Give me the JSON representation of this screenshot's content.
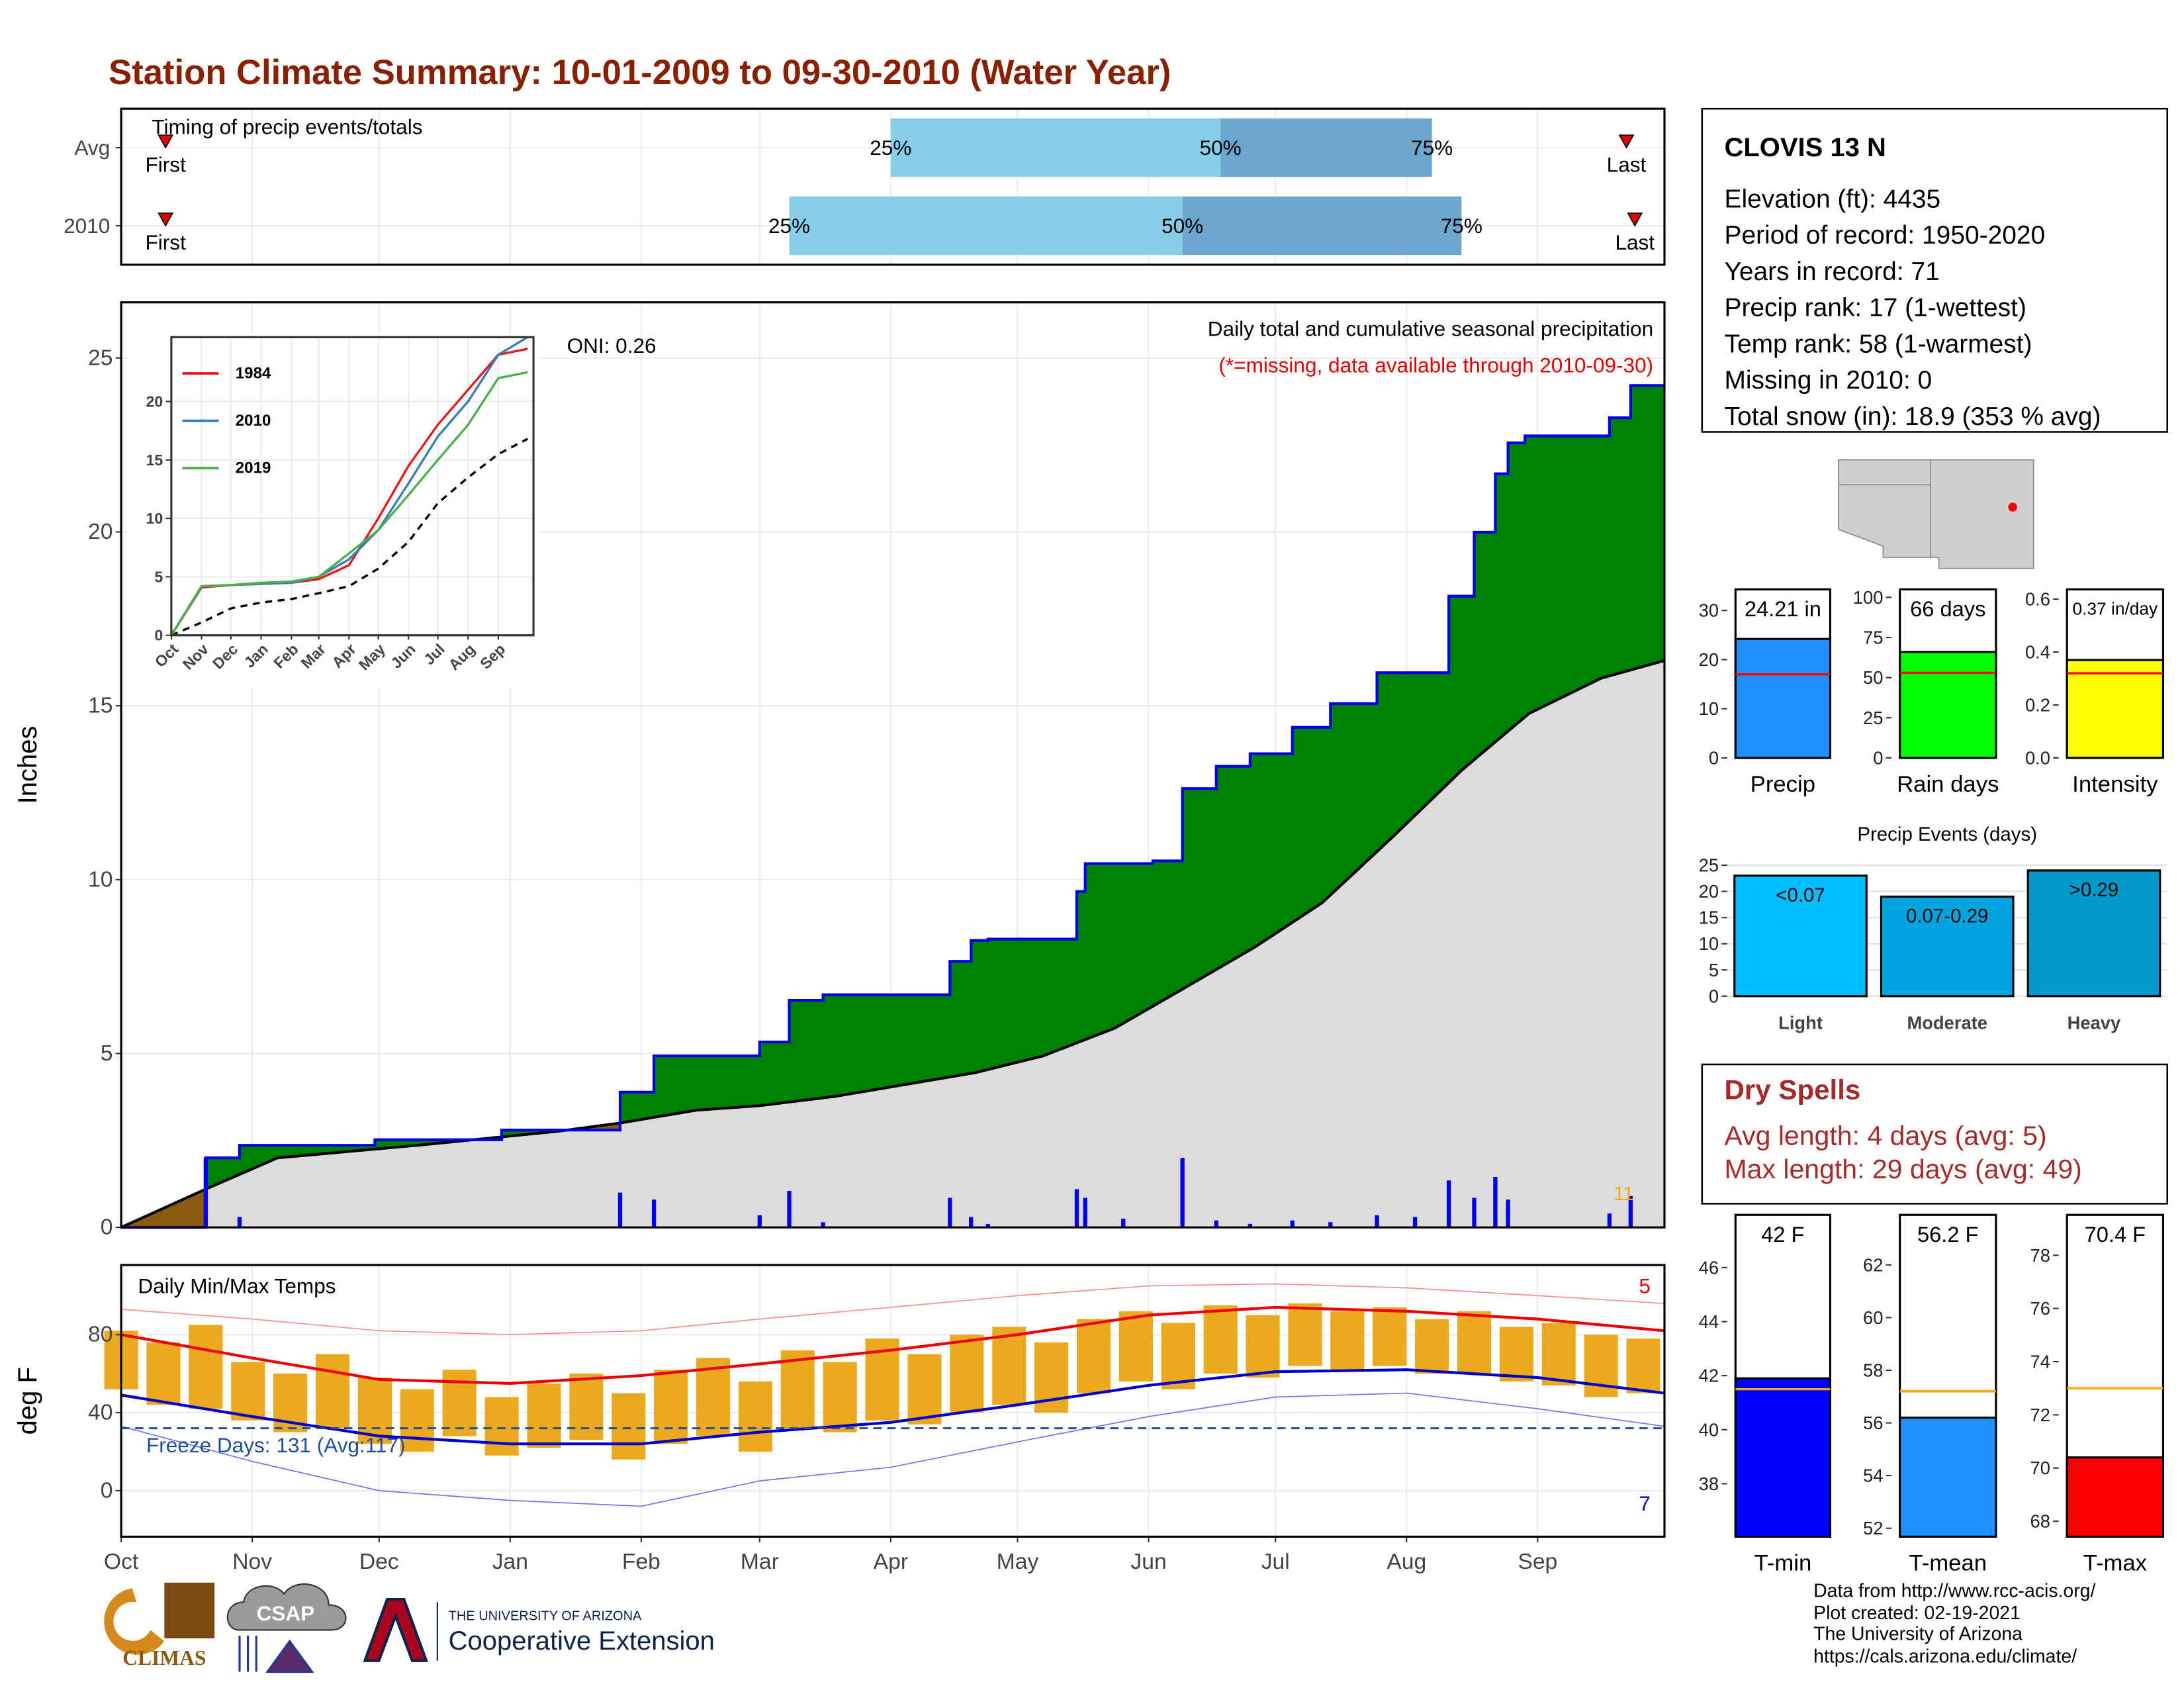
{
  "title": "Station Climate Summary: 10-01-2009 to 09-30-2010 (Water Year)",
  "station": {
    "name": "CLOVIS 13 N",
    "lines": [
      "Elevation (ft): 4435",
      "Period of record: 1950-2020",
      "Years in record: 71",
      "Precip rank: 17 (1-wettest)",
      "Temp rank: 58 (1-warmest)",
      "Missing in 2010: 0",
      "Total snow (in): 18.9 (353 % avg)"
    ]
  },
  "dry_spells": {
    "title": "Dry Spells",
    "lines": [
      "Avg length: 4 days (avg: 5)",
      "Max length: 29 days (avg: 49)"
    ]
  },
  "footer": {
    "credits": [
      "Data from http://www.rcc-acis.org/",
      "Plot created: 02-19-2021",
      "The University of Arizona",
      "https://cals.arizona.edu/climate/"
    ],
    "climas": "CLIMAS",
    "csap": "CSAP",
    "university": "THE UNIVERSITY OF ARIZONA",
    "extension": "Cooperative Extension"
  },
  "chart_data": [
    {
      "type": "timeline",
      "title": "Timing of precip events/totals",
      "categories": [
        "Avg",
        "2010"
      ],
      "xlim": [
        0,
        365
      ],
      "xticks": [
        0,
        31,
        61,
        92,
        123,
        151,
        182,
        212,
        243,
        273,
        304,
        335
      ],
      "first": [
        10.5,
        10.5
      ],
      "q25": [
        182,
        158
      ],
      "q50": [
        260,
        251
      ],
      "q75": [
        310,
        317
      ],
      "last": [
        356,
        358
      ],
      "first_label": "First",
      "last_label": "Last",
      "quantile_labels": [
        "25%",
        "50%",
        "75%"
      ],
      "colors": [
        "#87CEEB",
        "#6CA6CD"
      ],
      "marker_color": "#E00000"
    },
    {
      "type": "cumulative",
      "y_label": "Inches",
      "subtitle": "Daily total and cumulative seasonal precipitation",
      "note": "(*=missing, data available through 2010-09-30)",
      "oni": "ONI: 0.26",
      "count_label": 11,
      "xlim": [
        0,
        365
      ],
      "xticks": [
        0,
        31,
        61,
        92,
        123,
        151,
        182,
        212,
        243,
        273,
        304,
        335
      ],
      "ylim": [
        0,
        26.6
      ],
      "yticks": [
        0,
        5,
        10,
        15,
        20,
        25
      ],
      "cumulative": {
        "x": [
          0,
          20,
          28,
          60,
          90,
          118,
          126,
          151,
          158,
          166,
          196,
          201,
          205,
          226,
          228,
          244,
          251,
          259,
          267,
          277,
          286,
          297,
          314,
          320,
          325,
          328,
          332,
          352,
          357
        ],
        "values": [
          0,
          2.0,
          2.36,
          2.52,
          2.8,
          3.89,
          4.93,
          5.33,
          6.53,
          6.69,
          7.65,
          8.25,
          8.29,
          9.66,
          10.46,
          10.54,
          12.62,
          13.26,
          13.62,
          14.38,
          15.06,
          15.95,
          18.15,
          19.99,
          21.67,
          22.56,
          22.76,
          23.28,
          24.21
        ],
        "color": "#0000EE",
        "fill": "#008000"
      },
      "average": {
        "x": [
          0,
          20,
          37,
          70,
          103,
          118,
          136,
          151,
          169,
          185,
          202,
          218,
          235,
          251,
          268,
          284,
          301,
          317,
          333,
          350,
          365
        ],
        "values": [
          0,
          1.1,
          2.0,
          2.36,
          2.76,
          3.0,
          3.37,
          3.5,
          3.77,
          4.1,
          4.45,
          4.93,
          5.73,
          6.85,
          8.05,
          9.33,
          11.26,
          13.14,
          14.78,
          15.79,
          16.3
        ],
        "color": "#000000",
        "fill": "#DCDCDC",
        "deficit_fill": "#8B5A10"
      },
      "daily": {
        "x": [
          20,
          28,
          118,
          126,
          151,
          158,
          166,
          196,
          201,
          205,
          226,
          228,
          237,
          251,
          259,
          267,
          277,
          286,
          297,
          306,
          314,
          320,
          325,
          328,
          352,
          357
        ],
        "values": [
          2.0,
          0.3,
          1.0,
          0.8,
          0.35,
          1.05,
          0.15,
          0.85,
          0.3,
          0.1,
          1.1,
          0.85,
          0.25,
          2.0,
          0.2,
          0.1,
          0.2,
          0.15,
          0.35,
          0.3,
          1.35,
          0.85,
          1.45,
          0.8,
          0.4,
          0.9
        ],
        "color": "#0000EE"
      }
    },
    {
      "type": "line",
      "x": [
        0,
        31,
        61,
        92,
        123,
        151,
        182,
        212,
        243,
        273,
        304,
        335,
        365
      ],
      "xlim": [
        0,
        371
      ],
      "xticks": [
        {
          "value": 0,
          "label": "Oct"
        },
        {
          "value": 31,
          "label": "Nov"
        },
        {
          "value": 61,
          "label": "Dec"
        },
        {
          "value": 92,
          "label": "Jan"
        },
        {
          "value": 123,
          "label": "Feb"
        },
        {
          "value": 151,
          "label": "Mar"
        },
        {
          "value": 182,
          "label": "Apr"
        },
        {
          "value": 212,
          "label": "May"
        },
        {
          "value": 243,
          "label": "Jun"
        },
        {
          "value": 273,
          "label": "Jul"
        },
        {
          "value": 304,
          "label": "Aug"
        },
        {
          "value": 335,
          "label": "Sep"
        }
      ],
      "ylim": [
        0,
        25.5
      ],
      "yticks": [
        0,
        5,
        10,
        15,
        20
      ],
      "series": [
        {
          "name": "1984",
          "color": "#E41A1C",
          "values": [
            0,
            4.1,
            4.3,
            4.4,
            4.5,
            4.8,
            6,
            10,
            14.5,
            18,
            21,
            24,
            24.5
          ]
        },
        {
          "name": "2010",
          "color": "#377EB8",
          "values": [
            0,
            4.2,
            4.3,
            4.4,
            4.5,
            5.0,
            6.5,
            9,
            13,
            17,
            20,
            24,
            25.5
          ]
        },
        {
          "name": "2019",
          "color": "#4DAF4A",
          "values": [
            0,
            4.2,
            4.3,
            4.5,
            4.6,
            5,
            7,
            9,
            12,
            15,
            18,
            22,
            22.5
          ]
        }
      ],
      "average": {
        "color": "#000000",
        "values": [
          0,
          1.1,
          2.3,
          2.8,
          3.1,
          3.6,
          4.2,
          5.7,
          8.0,
          11.3,
          13.5,
          15.5,
          16.8
        ]
      }
    },
    {
      "type": "temperature",
      "title": "Daily Min/Max Temps",
      "y_label": "deg F",
      "xlim": [
        0,
        365
      ],
      "xticks": [
        {
          "value": 0,
          "label": "Oct"
        },
        {
          "value": 31,
          "label": "Nov"
        },
        {
          "value": 61,
          "label": "Dec"
        },
        {
          "value": 92,
          "label": "Jan"
        },
        {
          "value": 123,
          "label": "Feb"
        },
        {
          "value": 151,
          "label": "Mar"
        },
        {
          "value": 182,
          "label": "Apr"
        },
        {
          "value": 212,
          "label": "May"
        },
        {
          "value": 243,
          "label": "Jun"
        },
        {
          "value": 273,
          "label": "Jul"
        },
        {
          "value": 304,
          "label": "Aug"
        },
        {
          "value": 335,
          "label": "Sep"
        }
      ],
      "ylim": [
        -23.6,
        115.7
      ],
      "yticks": [
        0,
        40,
        80
      ],
      "freeze_line": 32,
      "freeze_label": "Freeze Days: 131 (Avg:117)",
      "record_high_count": 5,
      "record_low_count": 7,
      "daily": {
        "x": [
          0,
          10,
          20,
          30,
          40,
          50,
          60,
          70,
          80,
          90,
          100,
          110,
          120,
          130,
          140,
          150,
          160,
          170,
          180,
          190,
          200,
          210,
          220,
          230,
          240,
          250,
          260,
          270,
          280,
          290,
          300,
          310,
          320,
          330,
          340,
          350,
          360
        ],
        "max": [
          82,
          76,
          85,
          66,
          60,
          70,
          58,
          52,
          62,
          48,
          55,
          60,
          50,
          62,
          68,
          56,
          72,
          66,
          78,
          70,
          80,
          84,
          76,
          88,
          92,
          86,
          95,
          90,
          96,
          92,
          94,
          88,
          92,
          84,
          86,
          80,
          78
        ],
        "min": [
          52,
          44,
          42,
          36,
          30,
          32,
          24,
          20,
          28,
          18,
          22,
          26,
          16,
          24,
          28,
          20,
          32,
          30,
          36,
          34,
          40,
          44,
          40,
          50,
          56,
          52,
          60,
          58,
          64,
          62,
          64,
          60,
          60,
          56,
          54,
          48,
          50
        ],
        "color": "#EBA91E"
      },
      "normal": {
        "x": [
          0,
          31,
          61,
          92,
          123,
          151,
          182,
          212,
          243,
          273,
          304,
          335,
          365
        ],
        "max": [
          80,
          68,
          57,
          55,
          59,
          65,
          72,
          80,
          90,
          94,
          92,
          88,
          82
        ],
        "min": [
          49,
          38,
          28,
          24,
          24,
          30,
          35,
          44,
          54,
          61,
          62,
          58,
          50
        ],
        "record_max": [
          93,
          88,
          82,
          80,
          82,
          88,
          94,
          100,
          105,
          106,
          104,
          100,
          96
        ],
        "record_min": [
          33,
          15,
          0,
          -5,
          -8,
          5,
          12,
          25,
          38,
          48,
          50,
          42,
          33
        ],
        "max_color": "#EE0000",
        "min_color": "#0000CD",
        "record_max_color": "#FF8C8C",
        "record_min_color": "#7070FF",
        "freeze_color": "#1F4E9A"
      }
    },
    {
      "type": "bar",
      "categories": [
        "Precip"
      ],
      "values": [
        24.21
      ],
      "value_labels": [
        "24.21 in"
      ],
      "average": [
        17
      ],
      "ylim": [
        0,
        34.3
      ],
      "yticks": [
        0,
        10,
        20,
        30
      ],
      "color": "#1E90FF",
      "avg_color": "#FF0000"
    },
    {
      "type": "bar",
      "categories": [
        "Rain days"
      ],
      "values": [
        66
      ],
      "value_labels": [
        "66 days"
      ],
      "average": [
        53
      ],
      "ylim": [
        0,
        105
      ],
      "yticks": [
        0,
        25,
        50,
        75,
        100
      ],
      "color": "#00FF00",
      "avg_color": "#FF0000"
    },
    {
      "type": "bar",
      "categories": [
        "Intensity"
      ],
      "values": [
        0.37
      ],
      "value_labels": [
        "0.37 in/day"
      ],
      "average": [
        0.32
      ],
      "ylim": [
        0,
        0.637
      ],
      "yticks": [
        {
          "value": 0,
          "label": "0.0"
        },
        {
          "value": 0.2,
          "label": "0.2"
        },
        {
          "value": 0.4,
          "label": "0.4"
        },
        {
          "value": 0.6,
          "label": "0.6"
        }
      ],
      "color": "#FFFF00",
      "avg_color": "#FF0000"
    },
    {
      "type": "bar",
      "title": "Precip Events (days)",
      "categories": [
        "Light",
        "Moderate",
        "Heavy"
      ],
      "values": [
        23,
        19,
        24
      ],
      "bin_labels": [
        "<0.07",
        "0.07-0.29",
        ">0.29"
      ],
      "ylim": [
        0,
        27.4
      ],
      "yticks": [
        0,
        5,
        10,
        15,
        20,
        25
      ],
      "colors": [
        "#00BFFF",
        "#00A5E0",
        "#0099CC"
      ]
    },
    {
      "type": "bar",
      "categories": [
        "T-min"
      ],
      "values": [
        41.9
      ],
      "value_labels": [
        "42 F"
      ],
      "average": [
        41.5
      ],
      "ylim": [
        36.04,
        47.95
      ],
      "yticks": [
        38,
        40,
        42,
        44,
        46
      ],
      "color": "#0000FF",
      "avg_color": "#FFA500"
    },
    {
      "type": "bar",
      "categories": [
        "T-mean"
      ],
      "values": [
        56.2
      ],
      "value_labels": [
        "56.2 F"
      ],
      "average": [
        57.2
      ],
      "ylim": [
        51.68,
        63.9
      ],
      "yticks": [
        52,
        54,
        56,
        58,
        60,
        62
      ],
      "color": "#1E90FF",
      "avg_color": "#FFA500"
    },
    {
      "type": "bar",
      "categories": [
        "T-max"
      ],
      "values": [
        70.4
      ],
      "value_labels": [
        "70.4 F"
      ],
      "average": [
        73
      ],
      "ylim": [
        67.42,
        79.52
      ],
      "yticks": [
        68,
        70,
        72,
        74,
        76,
        78
      ],
      "color": "#FF0000",
      "avg_color": "#FFA500"
    }
  ]
}
